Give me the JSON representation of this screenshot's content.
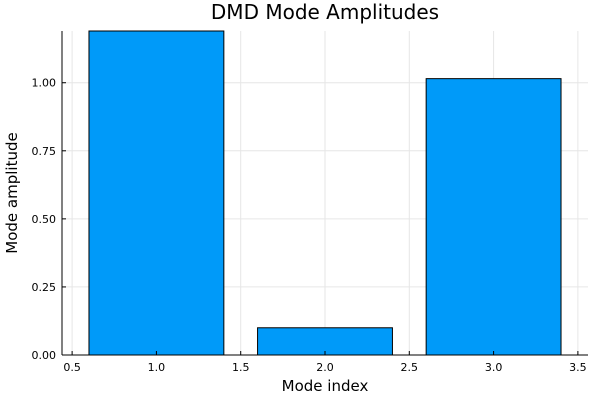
{
  "chart_data": {
    "type": "bar",
    "title": "DMD Mode Amplitudes",
    "xlabel": "Mode index",
    "ylabel": "Mode amplitude",
    "x": [
      1.0,
      2.0,
      3.0
    ],
    "values": [
      1.19,
      0.1,
      1.015
    ],
    "bar_width": 0.8,
    "xlim": [
      0.44,
      3.56
    ],
    "ylim": [
      0,
      1.19
    ],
    "xticks": [
      0.5,
      1.0,
      1.5,
      2.0,
      2.5,
      3.0,
      3.5
    ],
    "xtick_labels": [
      "0.5",
      "1.0",
      "1.5",
      "2.0",
      "2.5",
      "3.0",
      "3.5"
    ],
    "yticks": [
      0,
      0.25,
      0.5,
      0.75,
      1.0
    ],
    "ytick_labels": [
      "0.00",
      "0.25",
      "0.50",
      "0.75",
      "1.00"
    ],
    "grid": true,
    "legend": "none",
    "bar_color": "#009af9"
  }
}
